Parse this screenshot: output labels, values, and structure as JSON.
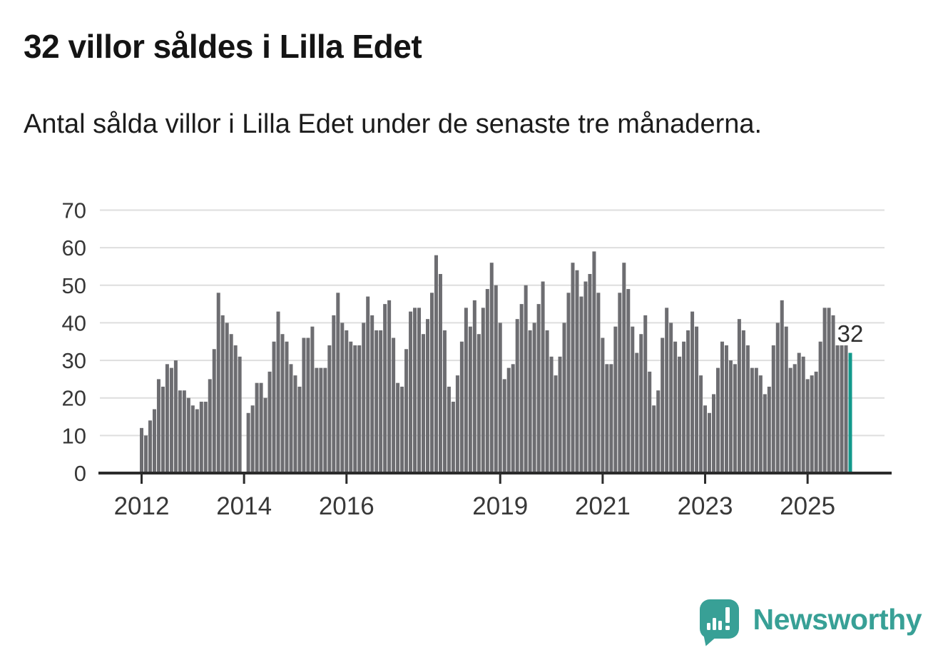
{
  "header": {
    "title": "32 villor såldes i Lilla Edet",
    "subtitle": "Antal sålda villor i Lilla Edet under de senaste tre månaderna."
  },
  "annotation": {
    "last_value_label": "32"
  },
  "branding": {
    "name": "Newsworthy",
    "logo": "newsworthy-speech-bubble-barchart-logo"
  },
  "colors": {
    "bar": "#6d6d71",
    "highlight": "#12998b",
    "grid": "#dedede",
    "axis": "#2b2b2b",
    "tick_label": "#383838",
    "brand_teal": "#38a096"
  },
  "chart_data": {
    "type": "bar",
    "title": "32 villor såldes i Lilla Edet",
    "ylabel": "",
    "xlabel": "",
    "ylim": [
      0,
      70
    ],
    "yticks": [
      0,
      10,
      20,
      30,
      40,
      50,
      60,
      70
    ],
    "xticks": [
      "2012",
      "2014",
      "2016",
      "2019",
      "2021",
      "2023",
      "2025"
    ],
    "x_unit": "month",
    "x_start": "2012-01",
    "x_end": "2025-11",
    "grid": "horizontal",
    "legend": "none",
    "highlight_last": true,
    "note": "one bar per month; 2014-01 has no bar (value 0)",
    "values": [
      12,
      10,
      14,
      17,
      25,
      23,
      29,
      28,
      30,
      22,
      22,
      20,
      18,
      17,
      19,
      19,
      25,
      33,
      48,
      42,
      40,
      37,
      34,
      31,
      0,
      16,
      18,
      24,
      24,
      20,
      27,
      35,
      43,
      37,
      35,
      29,
      26,
      23,
      36,
      36,
      39,
      28,
      28,
      28,
      34,
      42,
      48,
      40,
      38,
      35,
      34,
      34,
      40,
      47,
      42,
      38,
      38,
      45,
      46,
      36,
      24,
      23,
      33,
      43,
      44,
      44,
      37,
      41,
      48,
      58,
      53,
      38,
      23,
      19,
      26,
      35,
      44,
      39,
      46,
      37,
      44,
      49,
      56,
      50,
      40,
      25,
      28,
      29,
      41,
      45,
      50,
      38,
      40,
      45,
      51,
      38,
      31,
      26,
      31,
      40,
      48,
      56,
      54,
      47,
      51,
      53,
      59,
      48,
      36,
      29,
      29,
      39,
      48,
      56,
      49,
      39,
      32,
      37,
      42,
      27,
      18,
      22,
      36,
      44,
      40,
      35,
      31,
      35,
      38,
      43,
      39,
      26,
      18,
      16,
      21,
      28,
      35,
      34,
      30,
      29,
      41,
      38,
      34,
      28,
      28,
      26,
      21,
      23,
      34,
      40,
      46,
      39,
      28,
      29,
      32,
      31,
      25,
      26,
      27,
      35,
      44,
      44,
      42,
      34,
      34,
      34,
      32
    ]
  }
}
